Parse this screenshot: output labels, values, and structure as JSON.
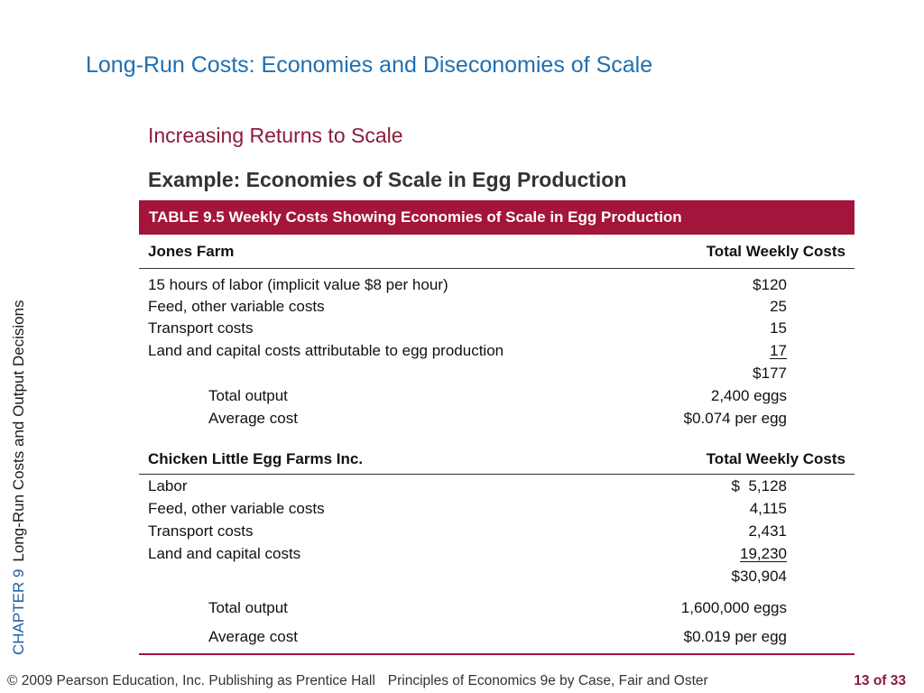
{
  "sidebar": {
    "chapter": "CHAPTER 9",
    "subtitle": "Long-Run Costs and Output Decisions"
  },
  "slide": {
    "title": "Long-Run Costs: Economies and Diseconomies of Scale",
    "subtitle": "Increasing Returns to Scale",
    "example": "Example: Economies of Scale in Egg Production"
  },
  "table": {
    "header": "TABLE 9.5  Weekly Costs Showing Economies of Scale in Egg Production",
    "jones": {
      "name": "Jones Farm",
      "col": "Total Weekly Costs",
      "rows": [
        {
          "label": "15 hours of labor (implicit value $8 per hour)",
          "value": "$120"
        },
        {
          "label": "Feed, other variable costs",
          "value": "25"
        },
        {
          "label": "Transport costs",
          "value": "15"
        },
        {
          "label": "Land and capital costs attributable to egg production",
          "value": "17"
        },
        {
          "label": "",
          "value": "$177"
        },
        {
          "label": "Total output",
          "value": "2,400 eggs"
        },
        {
          "label": "Average cost",
          "value": "$0.074 per egg"
        }
      ]
    },
    "chicken": {
      "name": "Chicken Little Egg Farms Inc.",
      "col": "Total Weekly Costs",
      "rows": [
        {
          "label": "Labor",
          "value": "$  5,128"
        },
        {
          "label": "Feed, other variable costs",
          "value": "4,115"
        },
        {
          "label": "Transport costs",
          "value": "2,431"
        },
        {
          "label": "Land and capital costs",
          "value": "19,230"
        },
        {
          "label": "",
          "value": "$30,904"
        },
        {
          "label": "Total output",
          "value": "1,600,000 eggs"
        },
        {
          "label": "Average cost",
          "value": "$0.019 per egg"
        }
      ]
    }
  },
  "footer": {
    "copyright": "© 2009 Pearson Education, Inc. Publishing as Prentice Hall",
    "book": "Principles of Economics 9e by Case, Fair and Oster",
    "page": "13 of 33"
  }
}
